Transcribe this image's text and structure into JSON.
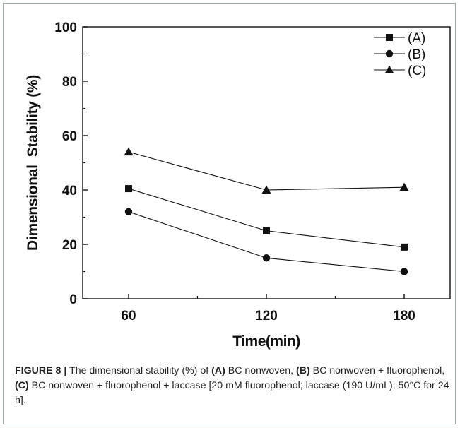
{
  "chart_data": {
    "type": "line",
    "x": [
      60,
      120,
      180
    ],
    "xticks": [
      "60",
      "120",
      "180"
    ],
    "yticks": [
      "0",
      "20",
      "40",
      "60",
      "80",
      "100"
    ],
    "xlim": [
      40,
      200
    ],
    "ylim": [
      0,
      100
    ],
    "xlabel": "Time(min)",
    "ylabel": "Dimensional  Stability (%)",
    "grid": false,
    "legend_position": "top-right",
    "series": [
      {
        "name": "(A)",
        "marker": "square",
        "values": [
          40.5,
          25,
          19
        ]
      },
      {
        "name": "(B)",
        "marker": "circle",
        "values": [
          32,
          15,
          10
        ]
      },
      {
        "name": "(C)",
        "marker": "triangle",
        "values": [
          54,
          40,
          41
        ]
      }
    ],
    "colors": {
      "line": "#111111",
      "marker": "#111111",
      "axis": "#111111"
    }
  },
  "caption": {
    "figure_label": "FIGURE 8 |",
    "text_1": " The dimensional stability (%) of ",
    "a_label": "(A)",
    "text_2": " BC nonwoven, ",
    "b_label": "(B)",
    "text_3": " BC nonwoven + fluorophenol, ",
    "c_label": "(C)",
    "text_4": " BC nonwoven + fluorophenol + laccase [20 mM fluorophenol; laccase (190 U/mL); 50°C for 24 h]."
  }
}
